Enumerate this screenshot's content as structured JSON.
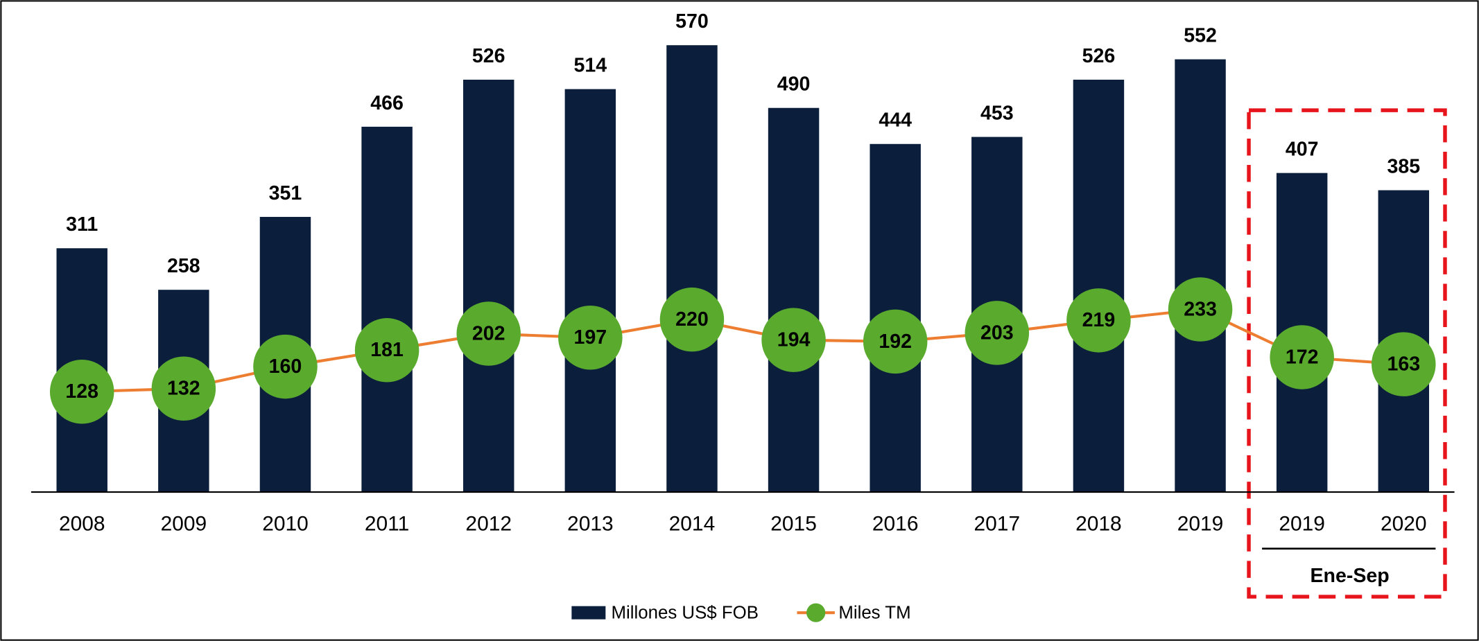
{
  "chart_data": {
    "type": "bar",
    "categories": [
      "2008",
      "2009",
      "2010",
      "2011",
      "2012",
      "2013",
      "2014",
      "2015",
      "2016",
      "2017",
      "2018",
      "2019",
      "2019",
      "2020"
    ],
    "series": [
      {
        "name": "Millones US$ FOB",
        "type": "bar",
        "color": "#0b1f3c",
        "values": [
          311,
          258,
          351,
          466,
          526,
          514,
          570,
          490,
          444,
          453,
          526,
          552,
          407,
          385
        ]
      },
      {
        "name": "Miles TM",
        "type": "line",
        "color": "#ed7d31",
        "marker_color": "#5aaa2e",
        "values": [
          128,
          132,
          160,
          181,
          202,
          197,
          220,
          194,
          192,
          203,
          219,
          233,
          172,
          163
        ]
      }
    ],
    "ylim": [
      0,
      600
    ],
    "annotation": "Ene-Sep",
    "legend": "bottom"
  }
}
